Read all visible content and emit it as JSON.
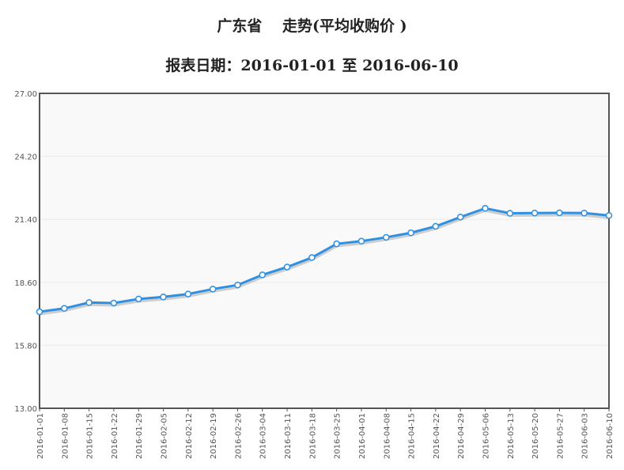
{
  "chart_data": {
    "type": "line",
    "title": "广东省　 走势(平均收购价 )",
    "subtitle": "报表日期：2016-01-01 至 2016-06-10",
    "xlabel": "",
    "ylabel": "",
    "ylim": [
      13.0,
      27.0
    ],
    "yticks": [
      "13.00",
      "15.80",
      "18.60",
      "21.40",
      "24.20",
      "27.00"
    ],
    "grid": true,
    "line_color": "#2f8fe0",
    "x": [
      "2016-01-01",
      "2016-01-08",
      "2016-01-15",
      "2016-01-22",
      "2016-01-29",
      "2016-02-05",
      "2016-02-12",
      "2016-02-19",
      "2016-02-26",
      "2016-03-04",
      "2016-03-11",
      "2016-03-18",
      "2016-03-25",
      "2016-04-01",
      "2016-04-08",
      "2016-04-15",
      "2016-04-22",
      "2016-04-29",
      "2016-05-06",
      "2016-05-13",
      "2016-05-20",
      "2016-05-27",
      "2016-06-03",
      "2016-06-10"
    ],
    "series": [
      {
        "values": [
          17.29,
          17.44,
          17.7,
          17.68,
          17.86,
          17.95,
          18.08,
          18.3,
          18.48,
          18.93,
          19.28,
          19.7,
          20.31,
          20.43,
          20.6,
          20.8,
          21.09,
          21.5,
          21.89,
          21.67,
          21.68,
          21.69,
          21.68,
          21.57
        ]
      }
    ]
  }
}
